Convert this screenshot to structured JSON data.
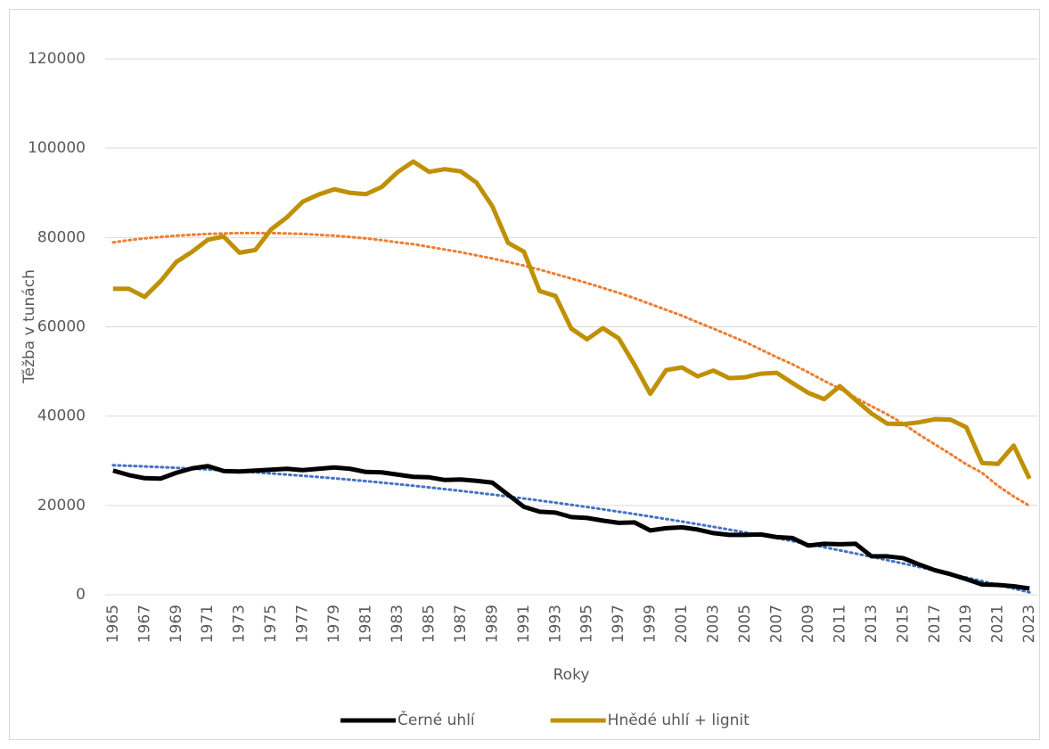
{
  "chart_data": {
    "type": "line",
    "x_label": "Roky",
    "y_label": "Těžba v tunách",
    "categories": [
      "1965",
      null,
      "1967",
      null,
      "1969",
      null,
      "1971",
      null,
      "1973",
      null,
      "1975",
      null,
      "1977",
      null,
      "1979",
      null,
      "1981",
      null,
      "1983",
      null,
      "1985",
      null,
      "1987",
      null,
      "1989",
      null,
      "1991",
      null,
      "1993",
      null,
      "1995",
      null,
      "1997",
      null,
      "1999",
      null,
      "2001",
      null,
      "2003",
      null,
      "2005",
      null,
      "2007",
      null,
      "2009",
      null,
      "2011",
      null,
      "2013",
      null,
      "2015",
      null,
      "2017",
      null,
      "2019",
      null,
      "2021",
      null,
      "2023"
    ],
    "ylim": [
      0,
      120000
    ],
    "yticks": [
      0,
      20000,
      40000,
      60000,
      80000,
      100000,
      120000
    ],
    "grid": true,
    "legend": "bottom",
    "series": [
      {
        "name": "Černé uhlí",
        "color": "#000000",
        "values": [
          27800,
          26800,
          26100,
          26000,
          27300,
          28300,
          28800,
          27700,
          27600,
          27800,
          28000,
          28200,
          27900,
          28200,
          28500,
          28200,
          27500,
          27400,
          26900,
          26400,
          26300,
          25700,
          25800,
          25500,
          25100,
          22400,
          19700,
          18600,
          18400,
          17400,
          17200,
          16600,
          16100,
          16200,
          14400,
          14900,
          15100,
          14600,
          13800,
          13400,
          13400,
          13500,
          12900,
          12700,
          11000,
          11400,
          11300,
          11400,
          8600,
          8600,
          8200,
          6800,
          5500,
          4600,
          3500,
          2300,
          2200,
          1900,
          1400
        ]
      },
      {
        "name": "Hnědé uhlí + lignit",
        "color": "#BF9000",
        "values": [
          68500,
          68500,
          66700,
          70200,
          74500,
          76800,
          79500,
          80200,
          76600,
          77200,
          81800,
          84500,
          88000,
          89600,
          90800,
          90000,
          89700,
          91300,
          94600,
          97000,
          94700,
          95300,
          94800,
          92300,
          87000,
          78800,
          76800,
          68000,
          66900,
          59600,
          57200,
          59700,
          57400,
          51500,
          45000,
          50300,
          50900,
          48900,
          50200,
          48500,
          48700,
          49500,
          49700,
          47400,
          45200,
          43800,
          46700,
          43600,
          40600,
          38300,
          38200,
          38600,
          39300,
          39200,
          37500,
          29500,
          29300,
          33400,
          26000
        ]
      },
      {
        "color": "#4472C4",
        "dashed": true,
        "values": [
          29000,
          28870,
          28730,
          28580,
          28420,
          28240,
          28050,
          27850,
          27630,
          27400,
          27160,
          26900,
          26640,
          26360,
          26070,
          25760,
          25440,
          25110,
          24770,
          24410,
          24040,
          23660,
          23260,
          22850,
          22430,
          22000,
          21550,
          21090,
          20620,
          20140,
          19640,
          19130,
          18600,
          18070,
          17520,
          16960,
          16390,
          15800,
          15200,
          14590,
          13960,
          13320,
          12670,
          12010,
          11330,
          10640,
          9940,
          9220,
          8490,
          7750,
          7000,
          6230,
          5450,
          4660,
          3860,
          3040,
          2220,
          1380,
          530
        ]
      },
      {
        "color": "#ED7D31",
        "dashed": true,
        "values": [
          78900,
          79400,
          79800,
          80100,
          80400,
          80600,
          80800,
          80900,
          81000,
          81000,
          81000,
          80900,
          80800,
          80600,
          80400,
          80100,
          79800,
          79400,
          78900,
          78500,
          77900,
          77300,
          76700,
          76000,
          75300,
          74500,
          73700,
          72800,
          71800,
          70800,
          69800,
          68700,
          67600,
          66400,
          65100,
          63800,
          62500,
          61000,
          59600,
          58100,
          56600,
          54900,
          53200,
          51600,
          49800,
          47900,
          46100,
          44100,
          42200,
          40400,
          38300,
          35900,
          33700,
          31500,
          29200,
          27300,
          24400,
          22000,
          19900
        ]
      }
    ]
  }
}
